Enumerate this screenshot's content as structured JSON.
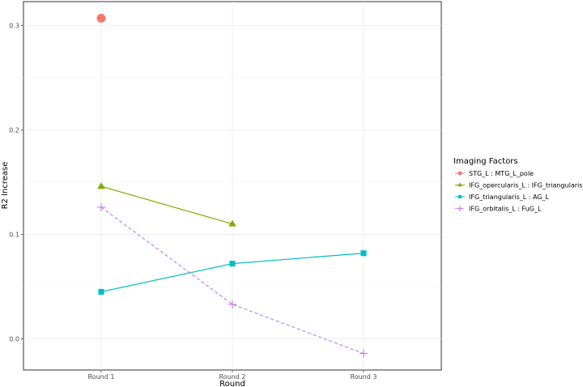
{
  "chart_data": {
    "type": "line",
    "title": "",
    "xlabel": "Round",
    "ylabel": "R2 Increase",
    "categories": [
      "Round 1",
      "Round 2",
      "Round 3"
    ],
    "y_ticks": [
      "0.0",
      "0.1",
      "0.2",
      "0.3"
    ],
    "ylim": [
      -0.03,
      0.32
    ],
    "grid": true,
    "legend": {
      "title": "Imaging Factors",
      "placement": "right"
    },
    "series": [
      {
        "name": "STG_L : MTG_L_pole",
        "values": [
          0.307,
          null,
          null
        ],
        "color": "#F8766D",
        "marker": "circle",
        "dash": false
      },
      {
        "name": "IFG_opercularis_L : IFG_triangularis_L",
        "values": [
          0.146,
          0.11,
          null
        ],
        "color": "#7CAE00",
        "marker": "triangle",
        "dash": false
      },
      {
        "name": "IFG_triangularis_L : AG_L",
        "values": [
          0.045,
          0.072,
          0.082
        ],
        "color": "#00BFC4",
        "marker": "square",
        "dash": false
      },
      {
        "name": "IFG_orbitalis_L : FuG_L",
        "values": [
          0.126,
          0.033,
          -0.014
        ],
        "color": "#C77CFF",
        "marker": "plus",
        "dash": true
      }
    ]
  }
}
